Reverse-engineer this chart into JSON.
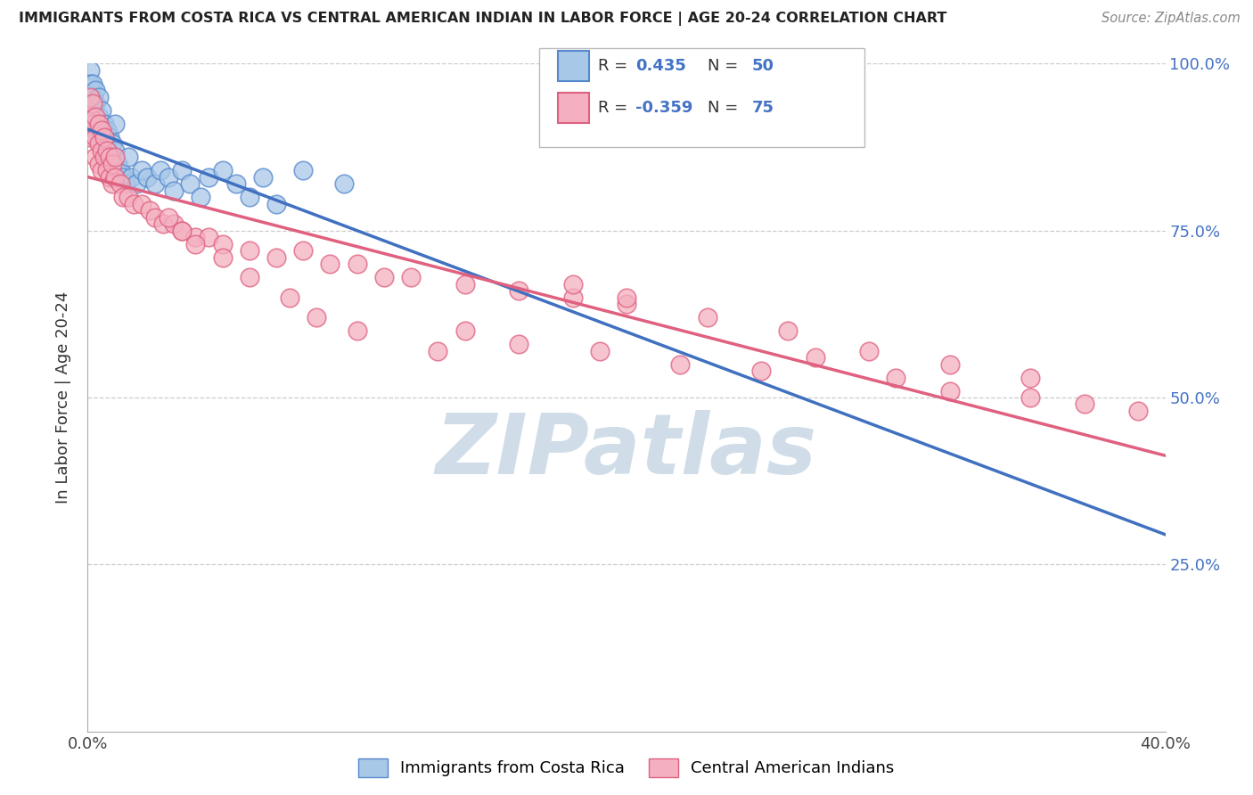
{
  "title": "IMMIGRANTS FROM COSTA RICA VS CENTRAL AMERICAN INDIAN IN LABOR FORCE | AGE 20-24 CORRELATION CHART",
  "source": "Source: ZipAtlas.com",
  "ylabel": "In Labor Force | Age 20-24",
  "xlim": [
    0.0,
    0.4
  ],
  "ylim": [
    0.0,
    1.0
  ],
  "blue_R": 0.435,
  "blue_N": 50,
  "pink_R": -0.359,
  "pink_N": 75,
  "blue_color": "#a8c8e8",
  "pink_color": "#f4b0c0",
  "blue_edge_color": "#5588cc",
  "pink_edge_color": "#e06080",
  "blue_line_color": "#4070c0",
  "pink_line_color": "#e06080",
  "watermark_color": "#d0dde8",
  "blue_scatter_x": [
    0.001,
    0.001,
    0.002,
    0.002,
    0.002,
    0.003,
    0.003,
    0.003,
    0.003,
    0.004,
    0.004,
    0.004,
    0.005,
    0.005,
    0.005,
    0.006,
    0.006,
    0.007,
    0.007,
    0.007,
    0.008,
    0.008,
    0.009,
    0.009,
    0.01,
    0.01,
    0.011,
    0.012,
    0.013,
    0.014,
    0.015,
    0.016,
    0.018,
    0.02,
    0.022,
    0.025,
    0.027,
    0.03,
    0.032,
    0.035,
    0.038,
    0.042,
    0.045,
    0.05,
    0.055,
    0.06,
    0.065,
    0.07,
    0.08,
    0.095
  ],
  "blue_scatter_y": [
    0.99,
    0.97,
    0.97,
    0.95,
    0.93,
    0.96,
    0.94,
    0.92,
    0.9,
    0.95,
    0.92,
    0.89,
    0.93,
    0.9,
    0.88,
    0.91,
    0.88,
    0.9,
    0.88,
    0.85,
    0.89,
    0.86,
    0.88,
    0.85,
    0.91,
    0.87,
    0.85,
    0.84,
    0.83,
    0.82,
    0.86,
    0.83,
    0.82,
    0.84,
    0.83,
    0.82,
    0.84,
    0.83,
    0.81,
    0.84,
    0.82,
    0.8,
    0.83,
    0.84,
    0.82,
    0.8,
    0.83,
    0.79,
    0.84,
    0.82
  ],
  "pink_scatter_x": [
    0.001,
    0.001,
    0.001,
    0.002,
    0.002,
    0.003,
    0.003,
    0.003,
    0.004,
    0.004,
    0.004,
    0.005,
    0.005,
    0.005,
    0.006,
    0.006,
    0.007,
    0.007,
    0.008,
    0.008,
    0.009,
    0.009,
    0.01,
    0.01,
    0.012,
    0.013,
    0.015,
    0.017,
    0.02,
    0.023,
    0.025,
    0.028,
    0.032,
    0.035,
    0.04,
    0.045,
    0.05,
    0.06,
    0.07,
    0.08,
    0.09,
    0.1,
    0.11,
    0.12,
    0.14,
    0.16,
    0.18,
    0.2,
    0.14,
    0.16,
    0.19,
    0.22,
    0.25,
    0.27,
    0.3,
    0.32,
    0.35,
    0.37,
    0.39,
    0.18,
    0.2,
    0.23,
    0.26,
    0.29,
    0.32,
    0.35,
    0.03,
    0.035,
    0.04,
    0.05,
    0.06,
    0.075,
    0.085,
    0.1,
    0.13
  ],
  "pink_scatter_y": [
    0.95,
    0.92,
    0.89,
    0.94,
    0.91,
    0.92,
    0.89,
    0.86,
    0.91,
    0.88,
    0.85,
    0.9,
    0.87,
    0.84,
    0.89,
    0.86,
    0.87,
    0.84,
    0.86,
    0.83,
    0.85,
    0.82,
    0.86,
    0.83,
    0.82,
    0.8,
    0.8,
    0.79,
    0.79,
    0.78,
    0.77,
    0.76,
    0.76,
    0.75,
    0.74,
    0.74,
    0.73,
    0.72,
    0.71,
    0.72,
    0.7,
    0.7,
    0.68,
    0.68,
    0.67,
    0.66,
    0.65,
    0.64,
    0.6,
    0.58,
    0.57,
    0.55,
    0.54,
    0.56,
    0.53,
    0.51,
    0.5,
    0.49,
    0.48,
    0.67,
    0.65,
    0.62,
    0.6,
    0.57,
    0.55,
    0.53,
    0.77,
    0.75,
    0.73,
    0.71,
    0.68,
    0.65,
    0.62,
    0.6,
    0.57
  ]
}
